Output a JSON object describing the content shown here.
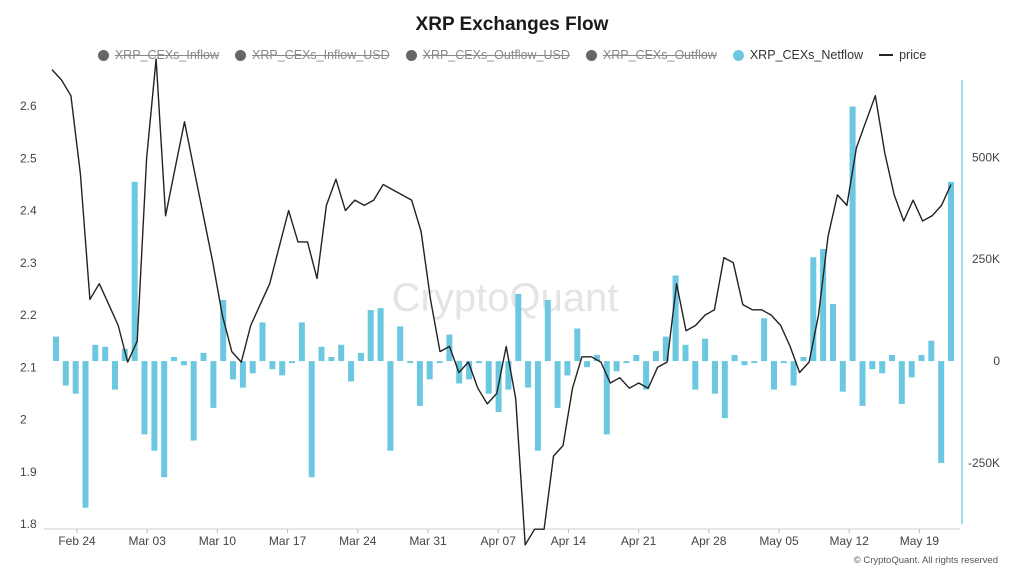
{
  "title": "XRP Exchanges Flow",
  "watermark": "CryptoQuant",
  "copyright": "© CryptoQuant. All rights reserved",
  "legend": [
    {
      "label": "XRP_CEXs_Inflow",
      "color": "#666666",
      "active": false
    },
    {
      "label": "XRP_CEXs_Inflow_USD",
      "color": "#666666",
      "active": false
    },
    {
      "label": "XRP_CEXs_Outflow_USD",
      "color": "#666666",
      "active": false
    },
    {
      "label": "XRP_CEXs_Outflow",
      "color": "#666666",
      "active": false
    },
    {
      "label": "XRP_CEXs_Netflow",
      "color": "#6cc8e0",
      "active": true
    },
    {
      "label": "price",
      "color": "#222222",
      "active": true,
      "kind": "line"
    }
  ],
  "chart_data": {
    "type": "bar",
    "x_ticks": [
      "Feb 24",
      "Mar 03",
      "Mar 10",
      "Mar 17",
      "Mar 24",
      "Mar 31",
      "Apr 07",
      "Apr 14",
      "Apr 21",
      "Apr 28",
      "May 05",
      "May 12",
      "May 19"
    ],
    "left_axis": {
      "ticks": [
        "2.6",
        "2.5",
        "2.4",
        "2.3",
        "2.2",
        "2.1",
        "2",
        "1.9",
        "1.8"
      ],
      "ylim": [
        1.8,
        2.65
      ]
    },
    "right_axis": {
      "ticks": [
        "500K",
        "250K",
        "0",
        "-250K"
      ],
      "ylim": [
        -400000,
        690000
      ]
    },
    "bar_color": "#6cc8e0",
    "line_color": "#222222",
    "series": [
      {
        "name": "XRP_CEXs_Netflow",
        "kind": "bar",
        "values": [
          60000,
          -60000,
          -80000,
          -360000,
          40000,
          35000,
          -70000,
          30000,
          440000,
          -180000,
          -220000,
          -285000,
          10000,
          -10000,
          -195000,
          20000,
          -115000,
          150000,
          -45000,
          -65000,
          -30000,
          95000,
          -20000,
          -35000,
          -5000,
          95000,
          -285000,
          35000,
          10000,
          40000,
          -50000,
          20000,
          125000,
          130000,
          -220000,
          85000,
          -5000,
          -110000,
          -45000,
          -5000,
          65000,
          -55000,
          -45000,
          -5000,
          -80000,
          -125000,
          -70000,
          165000,
          -65000,
          -220000,
          150000,
          -115000,
          -35000,
          80000,
          -15000,
          15000,
          -180000,
          -25000,
          -5000,
          15000,
          -70000,
          25000,
          60000,
          210000,
          40000,
          -70000,
          55000,
          -80000,
          -140000,
          15000,
          -10000,
          -5000,
          105000,
          -70000,
          -5000,
          -60000,
          10000,
          255000,
          275000,
          140000,
          -75000,
          625000,
          -110000,
          -20000,
          -30000,
          15000,
          -105000,
          -40000,
          15000,
          50000,
          -250000,
          440000
        ]
      },
      {
        "name": "price",
        "kind": "line",
        "values": [
          2.67,
          2.65,
          2.62,
          2.47,
          2.23,
          2.26,
          2.22,
          2.18,
          2.11,
          2.15,
          2.5,
          2.69,
          2.39,
          2.48,
          2.57,
          2.48,
          2.39,
          2.3,
          2.2,
          2.13,
          2.11,
          2.18,
          2.22,
          2.26,
          2.33,
          2.4,
          2.34,
          2.34,
          2.27,
          2.41,
          2.46,
          2.4,
          2.42,
          2.41,
          2.42,
          2.45,
          2.44,
          2.43,
          2.42,
          2.36,
          2.23,
          2.13,
          2.14,
          2.09,
          2.11,
          2.06,
          2.03,
          2.05,
          2.14,
          2.04,
          1.76,
          1.79,
          1.79,
          1.93,
          1.95,
          2.06,
          2.12,
          2.12,
          2.11,
          2.07,
          2.08,
          2.06,
          2.07,
          2.06,
          2.1,
          2.11,
          2.26,
          2.17,
          2.18,
          2.2,
          2.21,
          2.31,
          2.3,
          2.22,
          2.21,
          2.21,
          2.2,
          2.18,
          2.14,
          2.09,
          2.11,
          2.2,
          2.35,
          2.43,
          2.41,
          2.52,
          2.57,
          2.62,
          2.51,
          2.43,
          2.38,
          2.42,
          2.38,
          2.39,
          2.41,
          2.45
        ]
      }
    ],
    "grid": false
  }
}
